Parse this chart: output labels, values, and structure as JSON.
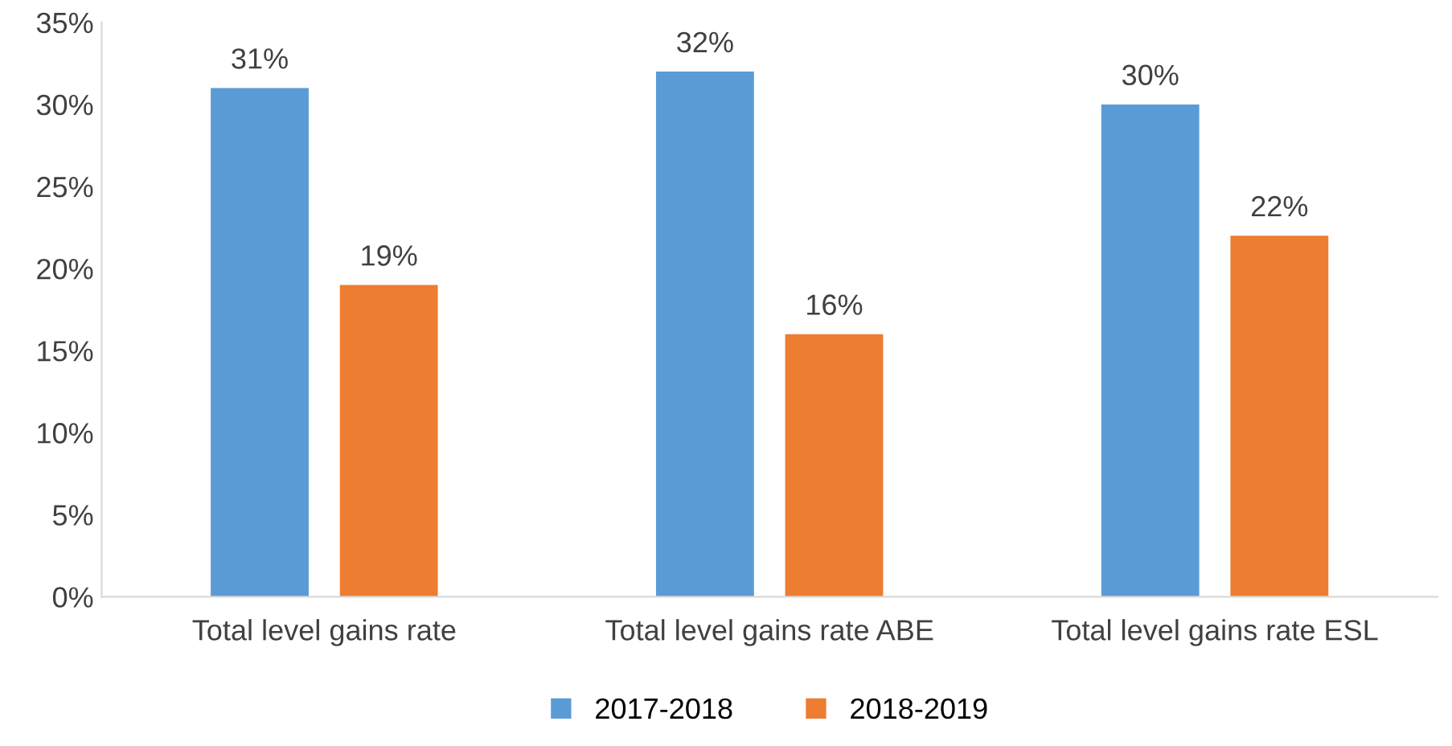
{
  "chart_data": {
    "type": "bar",
    "categories": [
      "Total level gains rate",
      "Total level gains rate ABE",
      "Total level gains rate ESL"
    ],
    "series": [
      {
        "name": "2017-2018",
        "color": "#5b9bd5",
        "values": [
          31,
          32,
          30
        ],
        "value_labels": [
          "31%",
          "32%",
          "30%"
        ]
      },
      {
        "name": "2018-2019",
        "color": "#ed7d31",
        "values": [
          19,
          16,
          22
        ],
        "value_labels": [
          "19%",
          "16%",
          "22%"
        ]
      }
    ],
    "ylim": [
      0,
      35
    ],
    "yticks": [
      {
        "value": 0,
        "label": "0%"
      },
      {
        "value": 5,
        "label": "5%"
      },
      {
        "value": 10,
        "label": "10%"
      },
      {
        "value": 15,
        "label": "15%"
      },
      {
        "value": 20,
        "label": "20%"
      },
      {
        "value": 25,
        "label": "25%"
      },
      {
        "value": 30,
        "label": "30%"
      },
      {
        "value": 35,
        "label": "35%"
      }
    ],
    "legend": "bottom"
  }
}
